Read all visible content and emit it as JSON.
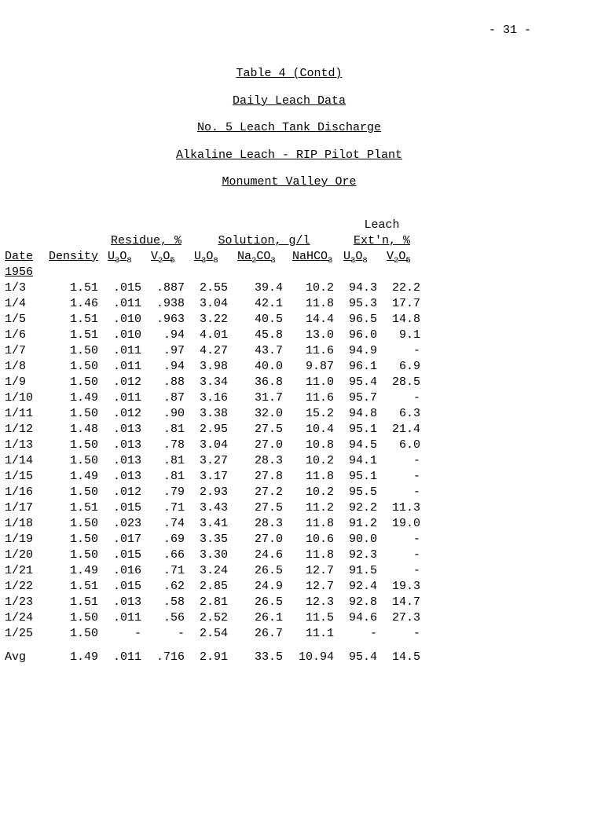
{
  "page_number": "- 31 -",
  "titles": {
    "t1": "Table 4 (Contd)",
    "t2": "Daily Leach Data",
    "t3": "No. 5 Leach Tank Discharge",
    "t4": "Alkaline Leach - RIP Pilot Plant",
    "t5": "Monument Valley Ore"
  },
  "headers": {
    "leach": "Leach",
    "residue": "Residue, %",
    "solution": "Solution, g/l",
    "extn": "Ext'n, %",
    "date": "Date",
    "density": "Density",
    "u3o8": "U",
    "u3o8_sub": "3",
    "u3o8_o": "O",
    "u3o8_sub2": "8",
    "v2o5": "V",
    "v2o5_sub": "2",
    "v2o5_o": "O",
    "v2o5_sub2": "5",
    "na2co3": "Na",
    "na2co3_sub": "2",
    "na2co3_co": "CO",
    "na2co3_sub2": "3",
    "nahco3": "NaHCO",
    "nahco3_sub": "3",
    "year": "1956",
    "avg": "Avg"
  },
  "rows": [
    {
      "date": "1/3",
      "density": "1.51",
      "r_u3o8": ".015",
      "r_v2o5": ".887",
      "s_u3o8": "2.55",
      "s_na2co3": "39.4",
      "s_nahco3": "10.2",
      "e_u3o8": "94.3",
      "e_v2o5": "22.2"
    },
    {
      "date": "1/4",
      "density": "1.46",
      "r_u3o8": ".011",
      "r_v2o5": ".938",
      "s_u3o8": "3.04",
      "s_na2co3": "42.1",
      "s_nahco3": "11.8",
      "e_u3o8": "95.3",
      "e_v2o5": "17.7"
    },
    {
      "date": "1/5",
      "density": "1.51",
      "r_u3o8": ".010",
      "r_v2o5": ".963",
      "s_u3o8": "3.22",
      "s_na2co3": "40.5",
      "s_nahco3": "14.4",
      "e_u3o8": "96.5",
      "e_v2o5": "14.8"
    },
    {
      "date": "1/6",
      "density": "1.51",
      "r_u3o8": ".010",
      "r_v2o5": ".94",
      "s_u3o8": "4.01",
      "s_na2co3": "45.8",
      "s_nahco3": "13.0",
      "e_u3o8": "96.0",
      "e_v2o5": "9.1"
    },
    {
      "date": "1/7",
      "density": "1.50",
      "r_u3o8": ".011",
      "r_v2o5": ".97",
      "s_u3o8": "4.27",
      "s_na2co3": "43.7",
      "s_nahco3": "11.6",
      "e_u3o8": "94.9",
      "e_v2o5": "-"
    },
    {
      "date": "1/8",
      "density": "1.50",
      "r_u3o8": ".011",
      "r_v2o5": ".94",
      "s_u3o8": "3.98",
      "s_na2co3": "40.0",
      "s_nahco3": "9.87",
      "e_u3o8": "96.1",
      "e_v2o5": "6.9"
    },
    {
      "date": "1/9",
      "density": "1.50",
      "r_u3o8": ".012",
      "r_v2o5": ".88",
      "s_u3o8": "3.34",
      "s_na2co3": "36.8",
      "s_nahco3": "11.0",
      "e_u3o8": "95.4",
      "e_v2o5": "28.5"
    },
    {
      "date": "1/10",
      "density": "1.49",
      "r_u3o8": ".011",
      "r_v2o5": ".87",
      "s_u3o8": "3.16",
      "s_na2co3": "31.7",
      "s_nahco3": "11.6",
      "e_u3o8": "95.7",
      "e_v2o5": "-"
    },
    {
      "date": "1/11",
      "density": "1.50",
      "r_u3o8": ".012",
      "r_v2o5": ".90",
      "s_u3o8": "3.38",
      "s_na2co3": "32.0",
      "s_nahco3": "15.2",
      "e_u3o8": "94.8",
      "e_v2o5": "6.3"
    },
    {
      "date": "1/12",
      "density": "1.48",
      "r_u3o8": ".013",
      "r_v2o5": ".81",
      "s_u3o8": "2.95",
      "s_na2co3": "27.5",
      "s_nahco3": "10.4",
      "e_u3o8": "95.1",
      "e_v2o5": "21.4"
    },
    {
      "date": "1/13",
      "density": "1.50",
      "r_u3o8": ".013",
      "r_v2o5": ".78",
      "s_u3o8": "3.04",
      "s_na2co3": "27.0",
      "s_nahco3": "10.8",
      "e_u3o8": "94.5",
      "e_v2o5": "6.0"
    },
    {
      "date": "1/14",
      "density": "1.50",
      "r_u3o8": ".013",
      "r_v2o5": ".81",
      "s_u3o8": "3.27",
      "s_na2co3": "28.3",
      "s_nahco3": "10.2",
      "e_u3o8": "94.1",
      "e_v2o5": "-"
    },
    {
      "date": "1/15",
      "density": "1.49",
      "r_u3o8": ".013",
      "r_v2o5": ".81",
      "s_u3o8": "3.17",
      "s_na2co3": "27.8",
      "s_nahco3": "11.8",
      "e_u3o8": "95.1",
      "e_v2o5": "-"
    },
    {
      "date": "1/16",
      "density": "1.50",
      "r_u3o8": ".012",
      "r_v2o5": ".79",
      "s_u3o8": "2.93",
      "s_na2co3": "27.2",
      "s_nahco3": "10.2",
      "e_u3o8": "95.5",
      "e_v2o5": "-"
    },
    {
      "date": "1/17",
      "density": "1.51",
      "r_u3o8": ".015",
      "r_v2o5": ".71",
      "s_u3o8": "3.43",
      "s_na2co3": "27.5",
      "s_nahco3": "11.2",
      "e_u3o8": "92.2",
      "e_v2o5": "11.3"
    },
    {
      "date": "1/18",
      "density": "1.50",
      "r_u3o8": ".023",
      "r_v2o5": ".74",
      "s_u3o8": "3.41",
      "s_na2co3": "28.3",
      "s_nahco3": "11.8",
      "e_u3o8": "91.2",
      "e_v2o5": "19.0"
    },
    {
      "date": "1/19",
      "density": "1.50",
      "r_u3o8": ".017",
      "r_v2o5": ".69",
      "s_u3o8": "3.35",
      "s_na2co3": "27.0",
      "s_nahco3": "10.6",
      "e_u3o8": "90.0",
      "e_v2o5": "-"
    },
    {
      "date": "1/20",
      "density": "1.50",
      "r_u3o8": ".015",
      "r_v2o5": ".66",
      "s_u3o8": "3.30",
      "s_na2co3": "24.6",
      "s_nahco3": "11.8",
      "e_u3o8": "92.3",
      "e_v2o5": "-"
    },
    {
      "date": "1/21",
      "density": "1.49",
      "r_u3o8": ".016",
      "r_v2o5": ".71",
      "s_u3o8": "3.24",
      "s_na2co3": "26.5",
      "s_nahco3": "12.7",
      "e_u3o8": "91.5",
      "e_v2o5": "-"
    },
    {
      "date": "1/22",
      "density": "1.51",
      "r_u3o8": ".015",
      "r_v2o5": ".62",
      "s_u3o8": "2.85",
      "s_na2co3": "24.9",
      "s_nahco3": "12.7",
      "e_u3o8": "92.4",
      "e_v2o5": "19.3"
    },
    {
      "date": "1/23",
      "density": "1.51",
      "r_u3o8": ".013",
      "r_v2o5": ".58",
      "s_u3o8": "2.81",
      "s_na2co3": "26.5",
      "s_nahco3": "12.3",
      "e_u3o8": "92.8",
      "e_v2o5": "14.7"
    },
    {
      "date": "1/24",
      "density": "1.50",
      "r_u3o8": ".011",
      "r_v2o5": ".56",
      "s_u3o8": "2.52",
      "s_na2co3": "26.1",
      "s_nahco3": "11.5",
      "e_u3o8": "94.6",
      "e_v2o5": "27.3"
    },
    {
      "date": "1/25",
      "density": "1.50",
      "r_u3o8": "-",
      "r_v2o5": "-",
      "s_u3o8": "2.54",
      "s_na2co3": "26.7",
      "s_nahco3": "11.1",
      "e_u3o8": "-",
      "e_v2o5": "-"
    }
  ],
  "avg": {
    "date": "Avg",
    "density": "1.49",
    "r_u3o8": ".011",
    "r_v2o5": ".716",
    "s_u3o8": "2.91",
    "s_na2co3": "33.5",
    "s_nahco3": "10.94",
    "e_u3o8": "95.4",
    "e_v2o5": "14.5"
  }
}
